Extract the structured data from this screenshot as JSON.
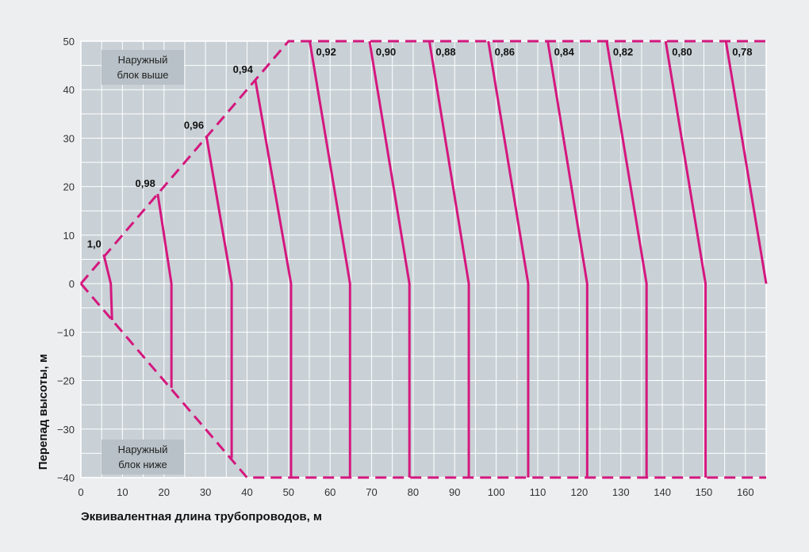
{
  "chart_data": {
    "type": "line",
    "xlabel": "Эквивалентная длина трубопроводов, м",
    "ylabel": "Перепад высоты, м",
    "xlim": [
      0,
      165
    ],
    "ylim": [
      -40,
      50
    ],
    "xticks": [
      0,
      10,
      20,
      30,
      40,
      50,
      60,
      70,
      80,
      90,
      100,
      110,
      120,
      130,
      140,
      150,
      160
    ],
    "yticks": [
      50,
      40,
      30,
      20,
      10,
      0,
      -10,
      -20,
      -30,
      -40
    ],
    "grid": true,
    "line_color": "#d4177e",
    "upper_region_label": [
      "Наружный",
      "блок выше"
    ],
    "lower_region_label": [
      "Наружный",
      "блок ниже"
    ],
    "boundary": {
      "style": "dashed",
      "upper": {
        "x": [
          0,
          50,
          165
        ],
        "y": [
          0,
          50,
          50
        ]
      },
      "lower": {
        "x": [
          0,
          40,
          165
        ],
        "y": [
          0,
          -40,
          -40
        ]
      }
    },
    "series": [
      {
        "name": "1,0",
        "x": [
          5.5,
          7.2,
          7.5,
          7.5
        ],
        "y": [
          6,
          0,
          -7.5,
          -7.5
        ]
      },
      {
        "name": "0,98",
        "x": [
          18.5,
          21.8,
          21.8,
          21.8
        ],
        "y": [
          18.5,
          0,
          -21.5,
          -21.5
        ]
      },
      {
        "name": "0,96",
        "x": [
          30.2,
          36.3,
          36.3,
          36.3
        ],
        "y": [
          30.5,
          0,
          -36,
          -36
        ]
      },
      {
        "name": "0,94",
        "x": [
          42,
          50.6,
          50.6,
          50.6
        ],
        "y": [
          42,
          0,
          -40,
          -40
        ]
      },
      {
        "name": "0,92",
        "x": [
          55.1,
          64.8,
          64.8
        ],
        "y": [
          50,
          0,
          -40
        ]
      },
      {
        "name": "0,90",
        "x": [
          69.5,
          79.1,
          79.1
        ],
        "y": [
          50,
          0,
          -40
        ]
      },
      {
        "name": "0,88",
        "x": [
          83.9,
          93.4,
          93.4
        ],
        "y": [
          50,
          0,
          -40
        ]
      },
      {
        "name": "0,86",
        "x": [
          98.1,
          107.7,
          107.7
        ],
        "y": [
          50,
          0,
          -40
        ]
      },
      {
        "name": "0,84",
        "x": [
          112.4,
          121.9,
          121.9
        ],
        "y": [
          50,
          0,
          -40
        ]
      },
      {
        "name": "0,82",
        "x": [
          126.6,
          136.2,
          136.2
        ],
        "y": [
          50,
          0,
          -40
        ]
      },
      {
        "name": "0,80",
        "x": [
          140.8,
          150.4,
          150.4
        ],
        "y": [
          50,
          0,
          -40
        ]
      },
      {
        "name": "0,78",
        "x": [
          155.3,
          165,
          165
        ],
        "y": [
          50,
          0,
          0
        ]
      }
    ]
  }
}
